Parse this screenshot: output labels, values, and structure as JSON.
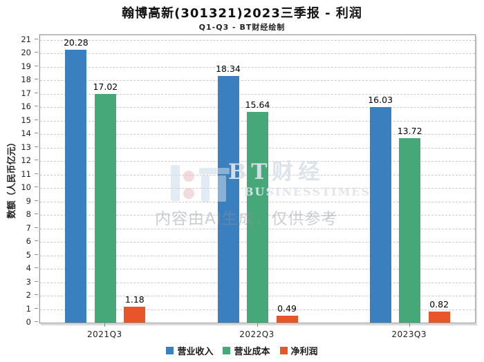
{
  "title": "翰博高新(301321)2023三季报 - 利润",
  "subtitle": "Q1-Q3 - BT财经绘制",
  "watermark": {
    "brand": "BT财经",
    "brand_sub": "BUSINESSTIMES",
    "disclaimer": "内容由AI生成，仅供参考"
  },
  "chart_data": {
    "type": "bar",
    "title": "翰博高新(301321)2023三季报 - 利润",
    "subtitle": "Q1-Q3 - BT财经绘制",
    "categories": [
      "2021Q3",
      "2022Q3",
      "2023Q3"
    ],
    "series": [
      {
        "name": "营业收入",
        "color": "#3A80BE",
        "values": [
          20.28,
          18.34,
          16.03
        ]
      },
      {
        "name": "营业成本",
        "color": "#46A878",
        "values": [
          17.02,
          15.64,
          13.72
        ]
      },
      {
        "name": "净利润",
        "color": "#E8552A",
        "values": [
          1.18,
          0.49,
          0.82
        ]
      }
    ],
    "xlabel": "",
    "ylabel": "数额（人民币亿元）",
    "ylim": [
      0,
      21
    ],
    "ytick_step": 1,
    "grid": true,
    "legend_position": "bottom"
  }
}
